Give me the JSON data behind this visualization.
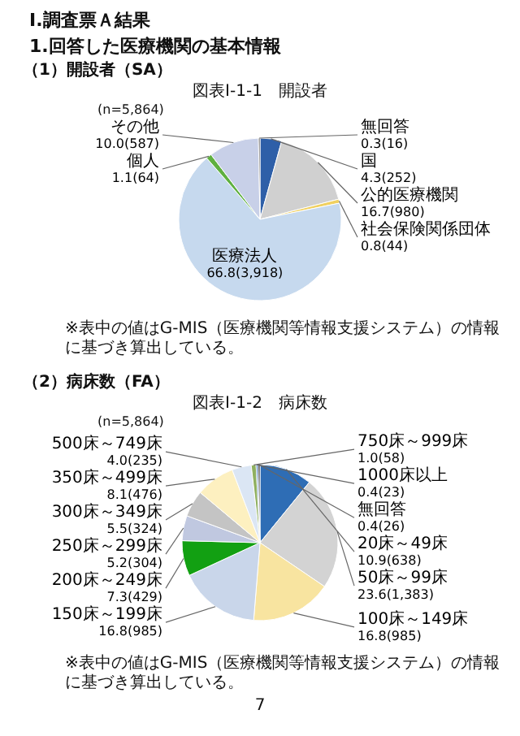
{
  "chart_data": [
    {
      "type": "pie",
      "title": "図表Ⅰ-1-1　開設者",
      "subtitle": "(n=5,864)",
      "categories": [
        "国",
        "公的医療機関",
        "社会保険関係団体",
        "医療法人",
        "個人",
        "その他",
        "無回答"
      ],
      "values": [
        4.3,
        16.7,
        0.8,
        66.8,
        1.1,
        10.0,
        0.3
      ],
      "value_labels": [
        "4.3(252)",
        "16.7(980)",
        "0.8(44)",
        "66.8(3,918)",
        "1.1(64)",
        "10.0(587)",
        "0.3(16)"
      ],
      "colors": [
        "#2e5fa8",
        "#d0d0d0",
        "#f0d060",
        "#c6d9ee",
        "#5fb040",
        "#c8d0e8",
        "#404040"
      ],
      "annotations": [
        "Ⅰ.調査票Ａ結果",
        "1.回答した医療機関の基本情報",
        "（1）開設者（SA）",
        "※表中の値はG-MIS（医療機関等情報支援システム）の情報に基づき算出している。"
      ]
    },
    {
      "type": "pie",
      "title": "図表Ⅰ-1-2　病床数",
      "subtitle": "(n=5,864)",
      "categories": [
        "20床～49床",
        "50床～99床",
        "100床～149床",
        "150床～199床",
        "200床～249床",
        "250床～299床",
        "300床～349床",
        "350床～499床",
        "500床～749床",
        "750床～999床",
        "1000床以上",
        "無回答"
      ],
      "values": [
        10.9,
        23.6,
        16.8,
        16.8,
        7.3,
        5.2,
        5.5,
        8.1,
        4.0,
        1.0,
        0.4,
        0.4
      ],
      "value_labels": [
        "10.9(638)",
        "23.6(1,383)",
        "16.8(985)",
        "16.8(985)",
        "7.3(429)",
        "5.2(304)",
        "5.5(324)",
        "8.1(476)",
        "4.0(235)",
        "1.0(58)",
        "0.4(23)",
        "0.4(26)"
      ],
      "colors": [
        "#2e6db5",
        "#d3d3d3",
        "#f8e4a0",
        "#c9d6ea",
        "#12a012",
        "#c0c8e0",
        "#c4c4c4",
        "#fdf0c0",
        "#dbe6f4",
        "#8fb060",
        "#5080c0",
        "#303030"
      ],
      "annotations": [
        "（2）病床数（FA）",
        "※表中の値はG-MIS（医療機関等情報支援システム）の情報に基づき算出している。",
        "7"
      ]
    }
  ]
}
